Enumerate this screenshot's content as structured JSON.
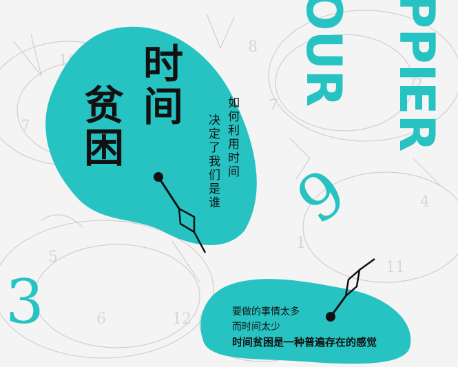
{
  "colors": {
    "accent": "#27c3c3",
    "text": "#111111",
    "background": "#f4f4f4"
  },
  "main_title": {
    "col1": "时间",
    "col2": "贫困"
  },
  "tagline": {
    "col1": "如何利用时间",
    "col2": "决定了我们是谁"
  },
  "deco_letters": {
    "word1": "PPIER",
    "word2": "OUR"
  },
  "deco_digits": {
    "nine": "9",
    "three": "3"
  },
  "description": {
    "line1": "要做的事情太多",
    "line2": "而时间太少",
    "line3": "时间贫困是一种普遍存在的感觉"
  }
}
